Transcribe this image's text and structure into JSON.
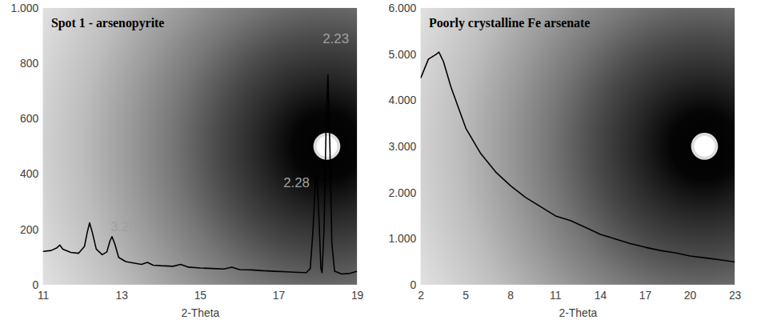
{
  "chart_data": [
    {
      "type": "line",
      "title": "Spot 1 - arsenopyrite",
      "x_label": "2-Theta",
      "color": "#000000",
      "x": [
        11.0,
        11.2,
        11.35,
        11.42,
        11.5,
        11.7,
        11.9,
        12.05,
        12.12,
        12.18,
        12.25,
        12.35,
        12.5,
        12.62,
        12.7,
        12.75,
        12.82,
        12.92,
        13.1,
        13.3,
        13.5,
        13.65,
        13.8,
        14.0,
        14.3,
        14.5,
        14.7,
        15.0,
        15.3,
        15.6,
        15.8,
        16.0,
        16.3,
        16.6,
        16.9,
        17.2,
        17.5,
        17.7,
        17.8,
        17.87,
        17.93,
        17.97,
        18.02,
        18.07,
        18.1,
        18.15,
        18.2,
        18.25,
        18.3,
        18.35,
        18.42,
        18.6,
        18.8,
        19.0
      ],
      "values": [
        122,
        125,
        135,
        145,
        130,
        118,
        115,
        140,
        190,
        225,
        190,
        130,
        110,
        120,
        160,
        175,
        150,
        100,
        85,
        80,
        75,
        82,
        72,
        70,
        68,
        75,
        65,
        62,
        60,
        58,
        65,
        56,
        55,
        52,
        50,
        48,
        46,
        45,
        60,
        200,
        380,
        400,
        250,
        60,
        45,
        200,
        550,
        760,
        500,
        150,
        50,
        40,
        42,
        50
      ],
      "xlim": [
        11,
        19
      ],
      "xticks": [
        11,
        13,
        15,
        17,
        19
      ],
      "ylim": [
        0,
        1000
      ],
      "yticks": [
        0,
        200,
        400,
        600,
        800,
        {
          "value": 1000,
          "label": "1.000"
        }
      ],
      "annotations": [
        {
          "text": "3.20",
          "x": 13.05,
          "y": 210,
          "color": "#a0a0a0"
        },
        {
          "text": "2.28",
          "x": 17.45,
          "y": 370,
          "color": "#a0a0a0"
        },
        {
          "text": "2.23",
          "x": 18.45,
          "y": 890,
          "color": "#a0a0a0"
        }
      ]
    },
    {
      "type": "line",
      "title": "Poorly crystalline Fe arsenate",
      "x_label": "2-Theta",
      "color": "#000000",
      "x": [
        2,
        2.5,
        3,
        3.2,
        3.5,
        4,
        5,
        6,
        7,
        8,
        9,
        10,
        11,
        12,
        13,
        14,
        15,
        16,
        17,
        18,
        19,
        20,
        21,
        22,
        23
      ],
      "values": [
        4500,
        4900,
        5000,
        5050,
        4850,
        4300,
        3400,
        2850,
        2450,
        2150,
        1900,
        1700,
        1500,
        1400,
        1250,
        1100,
        1000,
        900,
        820,
        750,
        700,
        630,
        590,
        550,
        500
      ],
      "xlim": [
        2,
        23
      ],
      "xticks": [
        2,
        5,
        8,
        11,
        14,
        17,
        20,
        23
      ],
      "ylim": [
        0,
        6000
      ],
      "yticks": [
        0,
        {
          "value": 1000,
          "label": "1.000"
        },
        {
          "value": 2000,
          "label": "2.000"
        },
        {
          "value": 3000,
          "label": "3.000"
        },
        {
          "value": 4000,
          "label": "4.000"
        },
        {
          "value": 5000,
          "label": "5.000"
        },
        {
          "value": 6000,
          "label": "6.000"
        }
      ]
    }
  ]
}
